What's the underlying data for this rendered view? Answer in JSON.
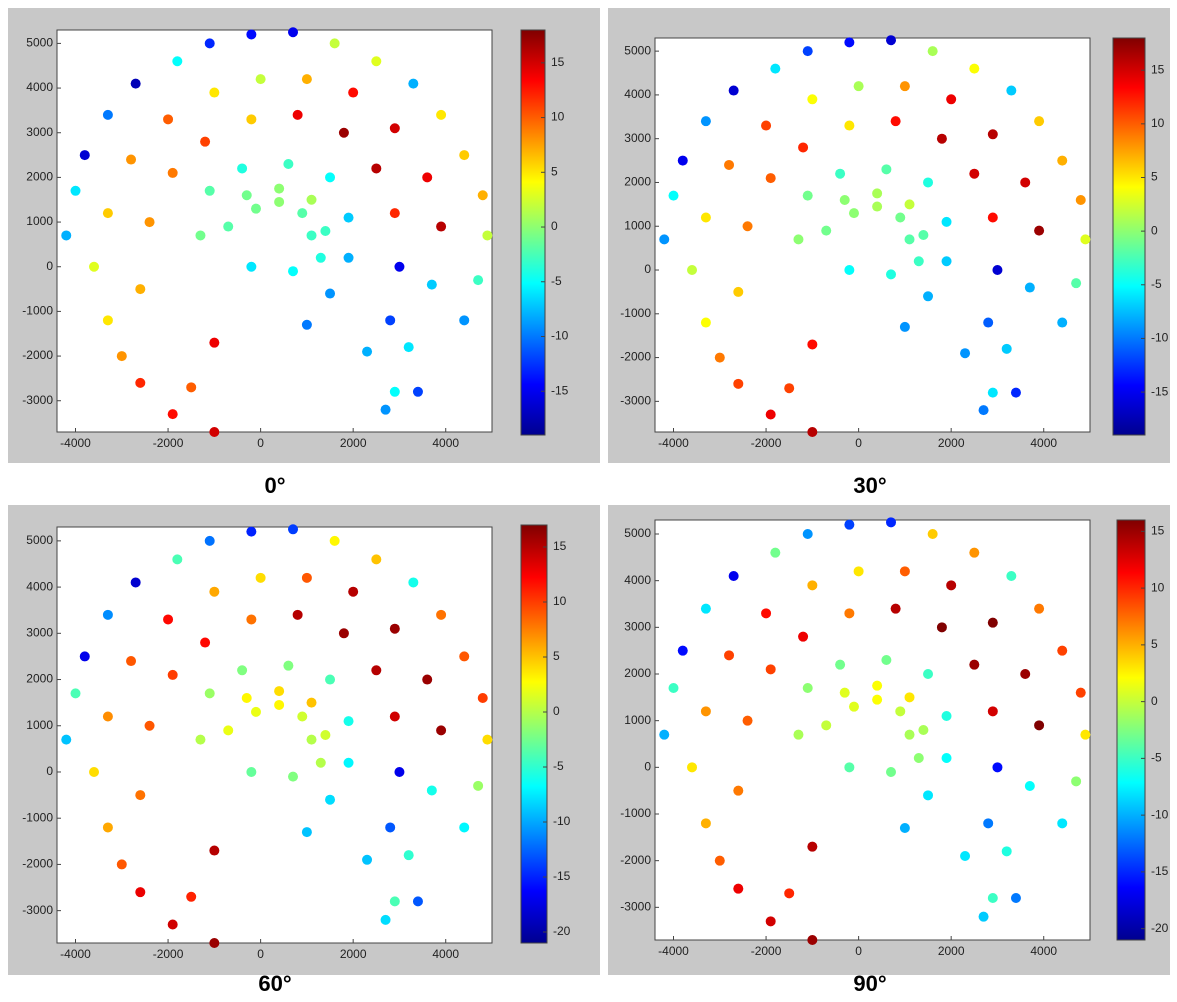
{
  "chart_data": [
    {
      "type": "scatter",
      "title": "0°",
      "colormap": "jet",
      "x": [
        -4200,
        -4000,
        -3800,
        -3300,
        -2700,
        -1800,
        -1100,
        -200,
        700,
        1600,
        2500,
        3300,
        3900,
        4400,
        4800,
        4900,
        4700,
        4400,
        3400,
        2900,
        -3600,
        -3300,
        -2800,
        -2000,
        -1000,
        0,
        1000,
        2000,
        2900,
        3600,
        3900,
        3700,
        3200,
        2700,
        -2600,
        -2400,
        -1900,
        -1200,
        -200,
        800,
        1800,
        2500,
        2900,
        3000,
        2800,
        2300,
        -2600,
        -1900,
        -1500,
        -1000,
        -1000,
        -3000,
        -3300,
        -700,
        -300,
        400,
        1100,
        1400,
        1300,
        700,
        -200,
        -100,
        400,
        900,
        1100,
        -1300,
        -1100,
        -400,
        600,
        1500,
        1900,
        1900,
        1500,
        1000
      ],
      "y": [
        700,
        1700,
        2500,
        3400,
        4100,
        4600,
        5000,
        5200,
        5250,
        5000,
        4600,
        4100,
        3400,
        2500,
        1600,
        700,
        -300,
        -1200,
        -2800,
        -2800,
        0,
        1200,
        2400,
        3300,
        3900,
        4200,
        4200,
        3900,
        3100,
        2000,
        900,
        -400,
        -1800,
        -3200,
        -500,
        1000,
        2100,
        2800,
        3300,
        3400,
        3000,
        2200,
        1200,
        0,
        -1200,
        -1900,
        -2600,
        -3300,
        -2700,
        -3700,
        -1700,
        -2000,
        -1200,
        900,
        1600,
        1750,
        1500,
        800,
        200,
        -100,
        0,
        1300,
        1450,
        1200,
        700,
        700,
        1700,
        2200,
        2300,
        2000,
        1100,
        200,
        -600,
        -1300
      ],
      "c": [
        -8,
        -6,
        -16,
        -10,
        -17,
        -5,
        -13,
        -14,
        -15,
        2,
        3,
        -8,
        5,
        6,
        7,
        2,
        -3,
        -9,
        -12,
        -5,
        3,
        6,
        8,
        10,
        5,
        2,
        7,
        13,
        15,
        14,
        16,
        -7,
        -6,
        -9,
        7,
        8,
        9,
        11,
        6,
        14,
        17,
        16,
        12,
        -15,
        -12,
        -8,
        12,
        13,
        10,
        15,
        14,
        8,
        5,
        -2,
        -1,
        0,
        1,
        -3,
        -4,
        -5,
        -6,
        -1,
        0,
        -2,
        -3,
        -1,
        -2,
        -4,
        -3,
        -5,
        -7,
        -8,
        -9,
        -10
      ],
      "xlim": [
        -4400,
        5000
      ],
      "ylim": [
        -3700,
        5300
      ],
      "xticks": [
        -4000,
        -2000,
        0,
        2000,
        4000
      ],
      "yticks": [
        -3000,
        -2000,
        -1000,
        0,
        1000,
        2000,
        3000,
        4000,
        5000
      ],
      "clim": [
        -19,
        18
      ],
      "cticks": [
        -15,
        -10,
        -5,
        0,
        5,
        10,
        15
      ]
    },
    {
      "type": "scatter",
      "title": "30°",
      "colormap": "jet",
      "x": [
        -4200,
        -4000,
        -3800,
        -3300,
        -2700,
        -1800,
        -1100,
        -200,
        700,
        1600,
        2500,
        3300,
        3900,
        4400,
        4800,
        4900,
        4700,
        4400,
        3400,
        2900,
        -3600,
        -3300,
        -2800,
        -2000,
        -1000,
        0,
        1000,
        2000,
        2900,
        3600,
        3900,
        3700,
        3200,
        2700,
        -2600,
        -2400,
        -1900,
        -1200,
        -200,
        800,
        1800,
        2500,
        2900,
        3000,
        2800,
        2300,
        -2600,
        -1900,
        -1500,
        -1000,
        -1000,
        -3000,
        -3300,
        -700,
        -300,
        400,
        1100,
        1400,
        1300,
        700,
        -200,
        -100,
        400,
        900,
        1100,
        -1300,
        -1100,
        -400,
        600,
        1500,
        1900,
        1900,
        1500,
        1000
      ],
      "y": [
        700,
        1700,
        2500,
        3400,
        4100,
        4600,
        5000,
        5200,
        5250,
        5000,
        4600,
        4100,
        3400,
        2500,
        1600,
        700,
        -300,
        -1200,
        -2800,
        -2800,
        0,
        1200,
        2400,
        3300,
        3900,
        4200,
        4200,
        3900,
        3100,
        2000,
        900,
        -400,
        -1800,
        -3200,
        -500,
        1000,
        2100,
        2800,
        3300,
        3400,
        3000,
        2200,
        1200,
        0,
        -1200,
        -1900,
        -2600,
        -3300,
        -2700,
        -3700,
        -1700,
        -2000,
        -1200,
        900,
        1600,
        1750,
        1500,
        800,
        200,
        -100,
        0,
        1300,
        1450,
        1200,
        700,
        700,
        1700,
        2200,
        2300,
        2000,
        1100,
        200,
        -600,
        -1300
      ],
      "c": [
        -9,
        -5,
        -15,
        -9,
        -16,
        -6,
        -12,
        -14,
        -16,
        1,
        4,
        -7,
        6,
        7,
        8,
        3,
        -2,
        -8,
        -13,
        -6,
        2,
        5,
        9,
        11,
        4,
        1,
        8,
        14,
        16,
        15,
        17,
        -8,
        -7,
        -10,
        6,
        9,
        10,
        12,
        5,
        13,
        16,
        15,
        13,
        -16,
        -11,
        -9,
        11,
        14,
        11,
        16,
        13,
        9,
        4,
        -1,
        0,
        1,
        2,
        -2,
        -3,
        -4,
        -5,
        0,
        1,
        -1,
        -2,
        0,
        -1,
        -3,
        -2,
        -4,
        -6,
        -7,
        -8,
        -9
      ],
      "xlim": [
        -4400,
        5000
      ],
      "ylim": [
        -3700,
        5300
      ],
      "xticks": [
        -4000,
        -2000,
        0,
        2000,
        4000
      ],
      "yticks": [
        -3000,
        -2000,
        -1000,
        0,
        1000,
        2000,
        3000,
        4000,
        5000
      ],
      "clim": [
        -19,
        18
      ],
      "cticks": [
        -15,
        -10,
        -5,
        0,
        5,
        10,
        15
      ]
    },
    {
      "type": "scatter",
      "title": "60°",
      "colormap": "jet",
      "x": [
        -4200,
        -4000,
        -3800,
        -3300,
        -2700,
        -1800,
        -1100,
        -200,
        700,
        1600,
        2500,
        3300,
        3900,
        4400,
        4800,
        4900,
        4700,
        4400,
        3400,
        2900,
        -3600,
        -3300,
        -2800,
        -2000,
        -1000,
        0,
        1000,
        2000,
        2900,
        3600,
        3900,
        3700,
        3200,
        2700,
        -2600,
        -2400,
        -1900,
        -1200,
        -200,
        800,
        1800,
        2500,
        2900,
        3000,
        2800,
        2300,
        -2600,
        -1900,
        -1500,
        -1000,
        -1000,
        -3000,
        -3300,
        -700,
        -300,
        400,
        1100,
        1400,
        1300,
        700,
        -200,
        -100,
        400,
        900,
        1100,
        -1300,
        -1100,
        -400,
        600,
        1500,
        1900,
        1900,
        1500,
        1000
      ],
      "y": [
        700,
        1700,
        2500,
        3400,
        4100,
        4600,
        5000,
        5200,
        5250,
        5000,
        4600,
        4100,
        3400,
        2500,
        1600,
        700,
        -300,
        -1200,
        -2800,
        -2800,
        0,
        1200,
        2400,
        3300,
        3900,
        4200,
        4200,
        3900,
        3100,
        2000,
        900,
        -400,
        -1800,
        -3200,
        -500,
        1000,
        2100,
        2800,
        3300,
        3400,
        3000,
        2200,
        1200,
        0,
        -1200,
        -1900,
        -2600,
        -3300,
        -2700,
        -3700,
        -1700,
        -2000,
        -1200,
        900,
        1600,
        1750,
        1500,
        800,
        200,
        -100,
        0,
        1300,
        1450,
        1200,
        700,
        700,
        1700,
        2200,
        2300,
        2000,
        1100,
        200,
        -600,
        -1300
      ],
      "c": [
        -9,
        -4,
        -17,
        -11,
        -18,
        -4,
        -12,
        -15,
        -14,
        3,
        5,
        -6,
        8,
        9,
        10,
        4,
        -1,
        -7,
        -13,
        -4,
        4,
        7,
        9,
        12,
        6,
        4,
        9,
        15,
        16,
        16,
        16,
        -6,
        -5,
        -8,
        8,
        9,
        10,
        12,
        8,
        15,
        16,
        15,
        14,
        -17,
        -13,
        -9,
        13,
        14,
        11,
        16,
        15,
        9,
        6,
        2,
        3,
        4,
        5,
        1,
        0,
        -2,
        -3,
        2,
        3,
        1,
        0,
        0,
        -1,
        -2,
        -2,
        -4,
        -6,
        -7,
        -8,
        -9
      ],
      "xlim": [
        -4400,
        5000
      ],
      "ylim": [
        -3700,
        5300
      ],
      "xticks": [
        -4000,
        -2000,
        0,
        2000,
        4000
      ],
      "yticks": [
        -3000,
        -2000,
        -1000,
        0,
        1000,
        2000,
        3000,
        4000,
        5000
      ],
      "clim": [
        -21,
        17
      ],
      "cticks": [
        -20,
        -15,
        -10,
        -5,
        0,
        5,
        10,
        15
      ]
    },
    {
      "type": "scatter",
      "title": "90°",
      "colormap": "jet",
      "x": [
        -4200,
        -4000,
        -3800,
        -3300,
        -2700,
        -1800,
        -1100,
        -200,
        700,
        1600,
        2500,
        3300,
        3900,
        4400,
        4800,
        4900,
        4700,
        4400,
        3400,
        2900,
        -3600,
        -3300,
        -2800,
        -2000,
        -1000,
        0,
        1000,
        2000,
        2900,
        3600,
        3900,
        3700,
        3200,
        2700,
        -2600,
        -2400,
        -1900,
        -1200,
        -200,
        800,
        1800,
        2500,
        2900,
        3000,
        2800,
        2300,
        -2600,
        -1900,
        -1500,
        -1000,
        -1000,
        -3000,
        -3300,
        -700,
        -300,
        400,
        1100,
        1400,
        1300,
        700,
        -200,
        -100,
        400,
        900,
        1100,
        -1300,
        -1100,
        -400,
        600,
        1500,
        1900,
        1900,
        1500,
        1000
      ],
      "y": [
        700,
        1700,
        2500,
        3400,
        4100,
        4600,
        5000,
        5200,
        5250,
        5000,
        4600,
        4100,
        3400,
        2500,
        1600,
        700,
        -300,
        -1200,
        -2800,
        -2800,
        0,
        1200,
        2400,
        3300,
        3900,
        4200,
        4200,
        3900,
        3100,
        2000,
        900,
        -400,
        -1800,
        -3200,
        -500,
        1000,
        2100,
        2800,
        3300,
        3400,
        3000,
        2200,
        1200,
        0,
        -1200,
        -1900,
        -2600,
        -3300,
        -2700,
        -3700,
        -1700,
        -2000,
        -1200,
        900,
        1600,
        1750,
        1500,
        800,
        200,
        -100,
        0,
        1300,
        1450,
        1200,
        700,
        700,
        1700,
        2200,
        2300,
        2000,
        1100,
        200,
        -600,
        -1300
      ],
      "c": [
        -10,
        -5,
        -16,
        -8,
        -17,
        -3,
        -11,
        -14,
        -15,
        4,
        6,
        -5,
        7,
        9,
        9,
        3,
        -2,
        -8,
        -12,
        -5,
        3,
        6,
        9,
        11,
        5,
        3,
        8,
        14,
        16,
        15,
        16,
        -7,
        -6,
        -9,
        7,
        8,
        9,
        12,
        7,
        14,
        16,
        15,
        13,
        -16,
        -12,
        -8,
        12,
        13,
        10,
        15,
        14,
        8,
        5,
        0,
        1,
        2,
        3,
        -1,
        -2,
        -3,
        -4,
        1,
        2,
        0,
        -1,
        -1,
        -2,
        -3,
        -3,
        -5,
        -6,
        -7,
        -8,
        -10
      ],
      "xlim": [
        -4400,
        5000
      ],
      "ylim": [
        -3700,
        5300
      ],
      "xticks": [
        -4000,
        -2000,
        0,
        2000,
        4000
      ],
      "yticks": [
        -3000,
        -2000,
        -1000,
        0,
        1000,
        2000,
        3000,
        4000,
        5000
      ],
      "clim": [
        -21,
        16
      ],
      "cticks": [
        -20,
        -15,
        -10,
        -5,
        0,
        5,
        10,
        15
      ]
    }
  ]
}
